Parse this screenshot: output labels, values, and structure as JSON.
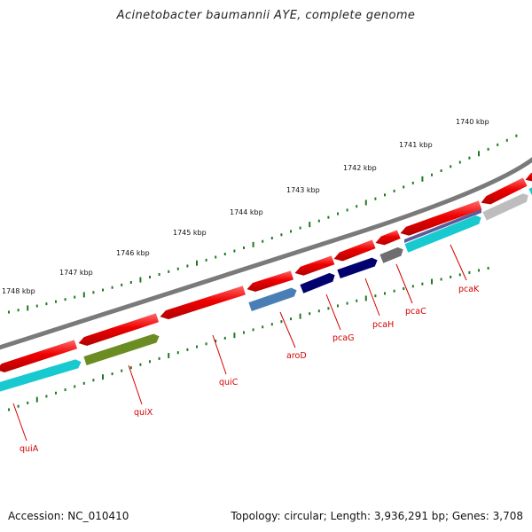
{
  "title": "Acinetobacter baumannii AYE, complete genome",
  "footer": {
    "accession": "Accession: NC_010410",
    "summary": "Topology: circular; Length: 3,936,291 bp; Genes: 3,708"
  },
  "kbp_labels": [
    "1740 kbp",
    "1741 kbp",
    "1742 kbp",
    "1743 kbp",
    "1744 kbp",
    "1745 kbp",
    "1746 kbp",
    "1747 kbp",
    "1748 kbp"
  ],
  "gene_labels": [
    "quiA",
    "quiX",
    "quiC",
    "aroD",
    "pcaG",
    "pcaH",
    "pcaC",
    "pcaK"
  ],
  "colors": {
    "backbone": "#7a7a7a",
    "cds": "#ee0000",
    "teal": "#19c9d0",
    "olive": "#6b8c23",
    "steelblue": "#4a7fb5",
    "navy": "#00006e",
    "gray": "#6e6e6e",
    "lightgray": "#bdbdbd",
    "purple": "#5b5b9a",
    "tick": "#1f7a1f",
    "label": "#d40000"
  }
}
